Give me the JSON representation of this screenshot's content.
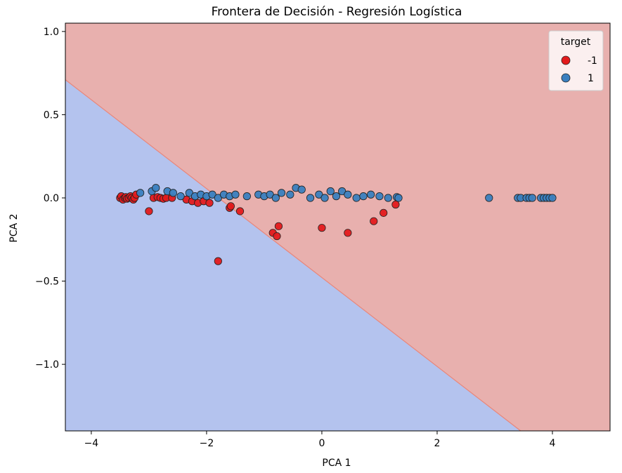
{
  "chart_data": {
    "type": "scatter",
    "title": "Frontera de Decisión - Regresión Logística",
    "xlabel": "PCA 1",
    "ylabel": "PCA 2",
    "xlim": [
      -4.45,
      5.0
    ],
    "ylim": [
      -1.4,
      1.05
    ],
    "xticks": [
      -4,
      -2,
      0,
      2,
      4
    ],
    "xtick_labels": [
      "−4",
      "−2",
      "0",
      "2",
      "4"
    ],
    "yticks": [
      1.0,
      0.5,
      0.0,
      -0.5,
      -1.0
    ],
    "ytick_labels": [
      "1.0",
      "0.5",
      "0.0",
      "−0.5",
      "−1.0"
    ],
    "grid": false,
    "legend": {
      "title": "target",
      "placement": "top-right"
    },
    "decision_boundary": {
      "line": [
        [
          -4.45,
          0.71
        ],
        [
          3.45,
          -1.4
        ]
      ],
      "region_below_color": "#b4c3ee",
      "region_above_color": "#e8b0ae"
    },
    "series": [
      {
        "name": "-1",
        "color": "#e31a1c",
        "points": [
          [
            -3.5,
            0.0
          ],
          [
            -3.48,
            0.01
          ],
          [
            -3.45,
            -0.01
          ],
          [
            -3.42,
            0.0
          ],
          [
            -3.4,
            0.005
          ],
          [
            -3.38,
            -0.005
          ],
          [
            -3.35,
            0.0
          ],
          [
            -3.32,
            0.01
          ],
          [
            -3.3,
            0.0
          ],
          [
            -3.27,
            -0.01
          ],
          [
            -3.25,
            0.0
          ],
          [
            -3.22,
            0.02
          ],
          [
            -3.0,
            -0.08
          ],
          [
            -2.92,
            0.0
          ],
          [
            -2.85,
            0.005
          ],
          [
            -2.8,
            0.0
          ],
          [
            -2.75,
            -0.005
          ],
          [
            -2.7,
            0.0
          ],
          [
            -2.6,
            0.0
          ],
          [
            -2.35,
            -0.01
          ],
          [
            -2.25,
            -0.02
          ],
          [
            -2.15,
            -0.03
          ],
          [
            -2.05,
            -0.02
          ],
          [
            -1.95,
            -0.03
          ],
          [
            -1.6,
            -0.06
          ],
          [
            -1.58,
            -0.05
          ],
          [
            -1.42,
            -0.08
          ],
          [
            -1.8,
            -0.38
          ],
          [
            -0.85,
            -0.21
          ],
          [
            -0.78,
            -0.23
          ],
          [
            -0.75,
            -0.17
          ],
          [
            0.0,
            -0.18
          ],
          [
            0.45,
            -0.21
          ],
          [
            0.9,
            -0.14
          ],
          [
            1.07,
            -0.09
          ],
          [
            1.28,
            -0.04
          ]
        ]
      },
      {
        "name": "1",
        "color": "#3a7fbf",
        "points": [
          [
            -3.15,
            0.03
          ],
          [
            -2.95,
            0.04
          ],
          [
            -2.88,
            0.06
          ],
          [
            -2.68,
            0.04
          ],
          [
            -2.58,
            0.03
          ],
          [
            -2.45,
            0.01
          ],
          [
            -2.3,
            0.03
          ],
          [
            -2.2,
            0.01
          ],
          [
            -2.1,
            0.02
          ],
          [
            -2.0,
            0.01
          ],
          [
            -1.9,
            0.02
          ],
          [
            -1.8,
            0.0
          ],
          [
            -1.7,
            0.02
          ],
          [
            -1.6,
            0.01
          ],
          [
            -1.5,
            0.02
          ],
          [
            -1.3,
            0.01
          ],
          [
            -1.1,
            0.02
          ],
          [
            -1.0,
            0.01
          ],
          [
            -0.9,
            0.02
          ],
          [
            -0.8,
            0.0
          ],
          [
            -0.7,
            0.03
          ],
          [
            -0.55,
            0.02
          ],
          [
            -0.45,
            0.06
          ],
          [
            -0.35,
            0.05
          ],
          [
            -0.2,
            0.0
          ],
          [
            -0.05,
            0.02
          ],
          [
            0.05,
            0.0
          ],
          [
            0.15,
            0.04
          ],
          [
            0.25,
            0.01
          ],
          [
            0.35,
            0.04
          ],
          [
            0.45,
            0.02
          ],
          [
            0.6,
            0.0
          ],
          [
            0.72,
            0.01
          ],
          [
            0.85,
            0.02
          ],
          [
            1.0,
            0.01
          ],
          [
            1.15,
            0.0
          ],
          [
            1.3,
            0.005
          ],
          [
            1.33,
            0.0
          ],
          [
            2.9,
            0.0
          ],
          [
            3.4,
            0.0
          ],
          [
            3.45,
            0.0
          ],
          [
            3.55,
            0.0
          ],
          [
            3.6,
            0.0
          ],
          [
            3.65,
            0.0
          ],
          [
            3.8,
            0.0
          ],
          [
            3.85,
            0.0
          ],
          [
            3.9,
            0.0
          ],
          [
            3.95,
            0.0
          ],
          [
            4.0,
            0.0
          ]
        ]
      }
    ]
  }
}
